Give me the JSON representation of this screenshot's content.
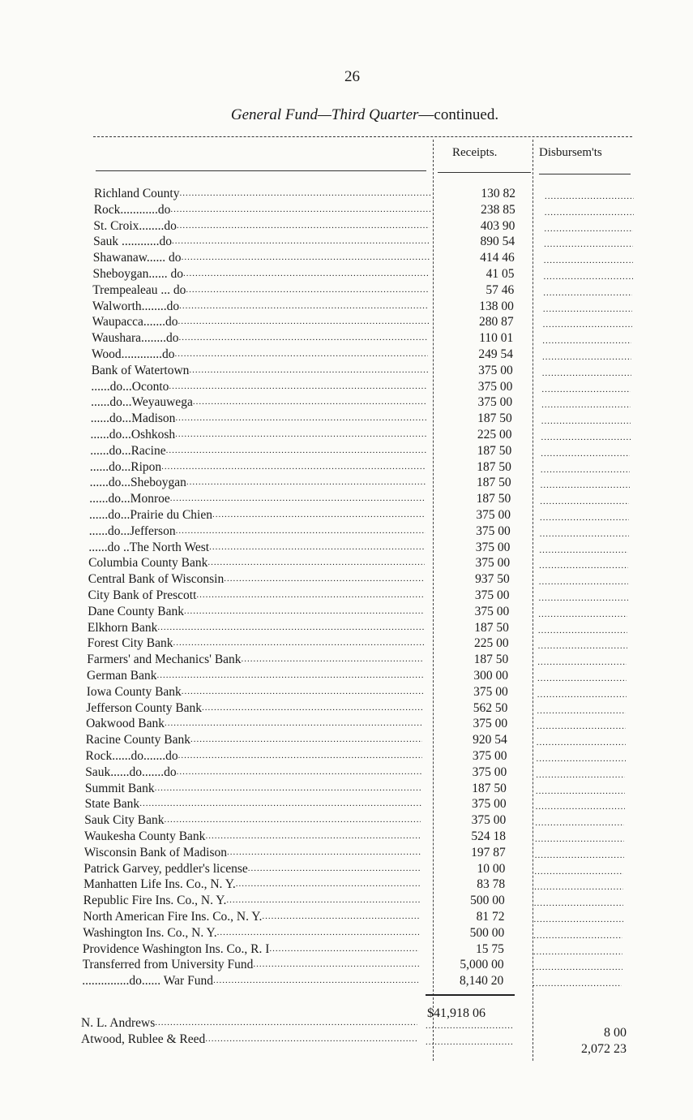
{
  "page_number": "26",
  "title": {
    "italic": "General Fund—Third Quarter",
    "rest": "—continued."
  },
  "headers": {
    "receipts": "Receipts.",
    "disbursements": "Disbursem'ts"
  },
  "rows": [
    {
      "label": "Richland  County",
      "receipt": "130 82"
    },
    {
      "label": "Rock............do",
      "receipt": "238 85"
    },
    {
      "label": "St. Croix........do",
      "receipt": "403 90"
    },
    {
      "label": "Sauk ............do",
      "receipt": "890 54"
    },
    {
      "label": "Shawanaw...... do",
      "receipt": "414 46"
    },
    {
      "label": "Sheboygan...... do",
      "receipt": "41 05"
    },
    {
      "label": "Trempealeau ... do",
      "receipt": "57 46"
    },
    {
      "label": "Walworth........do",
      "receipt": "138 00"
    },
    {
      "label": "Waupacca.......do",
      "receipt": "280 87"
    },
    {
      "label": "Waushara........do",
      "receipt": "110 01"
    },
    {
      "label": "Wood.............do",
      "receipt": "249 54"
    },
    {
      "label": "Bank of Watertown",
      "receipt": "375 00"
    },
    {
      "label": "......do...Oconto",
      "receipt": "375 00"
    },
    {
      "label": "......do...Weyauwega",
      "receipt": "375 00"
    },
    {
      "label": "......do...Madison",
      "receipt": "187 50"
    },
    {
      "label": "......do...Oshkosh",
      "receipt": "225 00"
    },
    {
      "label": "......do...Racine",
      "receipt": "187 50"
    },
    {
      "label": "......do...Ripon",
      "receipt": "187 50"
    },
    {
      "label": "......do...Sheboygan",
      "receipt": "187 50"
    },
    {
      "label": "......do...Monroe",
      "receipt": "187 50"
    },
    {
      "label": "......do...Prairie du Chien",
      "receipt": "375 00"
    },
    {
      "label": "......do...Jefferson",
      "receipt": "375 00"
    },
    {
      "label": "......do ..The North West",
      "receipt": "375 00"
    },
    {
      "label": "Columbia County Bank",
      "receipt": "375 00"
    },
    {
      "label": "Central Bank of Wisconsin",
      "receipt": "937 50"
    },
    {
      "label": "City Bank of Prescott",
      "receipt": "375 00"
    },
    {
      "label": "Dane County Bank",
      "receipt": "375 00"
    },
    {
      "label": "Elkhorn Bank",
      "receipt": "187 50"
    },
    {
      "label": "Forest City Bank",
      "receipt": "225 00"
    },
    {
      "label": "Farmers' and Mechanics' Bank",
      "receipt": "187 50"
    },
    {
      "label": "German Bank",
      "receipt": "300 00"
    },
    {
      "label": "Iowa County Bank",
      "receipt": "375 00"
    },
    {
      "label": "Jefferson County Bank",
      "receipt": "562 50"
    },
    {
      "label": "Oakwood Bank",
      "receipt": "375 00"
    },
    {
      "label": "Racine County Bank",
      "receipt": "920 54"
    },
    {
      "label": "Rock......do.......do",
      "receipt": "375 00"
    },
    {
      "label": "Sauk......do.......do",
      "receipt": "375 00"
    },
    {
      "label": "Summit Bank",
      "receipt": "187 50"
    },
    {
      "label": "State Bank",
      "receipt": "375 00"
    },
    {
      "label": "Sauk City Bank",
      "receipt": "375 00"
    },
    {
      "label": "Waukesha County Bank",
      "receipt": "524 18"
    },
    {
      "label": "Wisconsin Bank of Madison",
      "receipt": "197 87"
    },
    {
      "label": "Patrick Garvey, peddler's license",
      "receipt": "10 00"
    },
    {
      "label": "Manhatten Life Ins. Co., N. Y.",
      "receipt": "83 78"
    },
    {
      "label": "Republic Fire Ins. Co., N. Y.",
      "receipt": "500 00"
    },
    {
      "label": "North American Fire Ins. Co., N. Y.",
      "receipt": "81 72"
    },
    {
      "label": "Washington Ins. Co., N. Y.",
      "receipt": "500 00"
    },
    {
      "label": "Providence Washington Ins. Co., R. I",
      "receipt": "15 75"
    },
    {
      "label": "Transferred from University Fund",
      "receipt": "5,000 00"
    },
    {
      "label": "...............do...... War Fund",
      "receipt": "8,140 20"
    }
  ],
  "receipts_total": "$41,918 06",
  "disbursement_rows": [
    {
      "label": "N. L. Andrews",
      "disbursement": "8 00"
    },
    {
      "label": "Atwood, Rublee & Reed",
      "disbursement": "2,072 23"
    }
  ]
}
